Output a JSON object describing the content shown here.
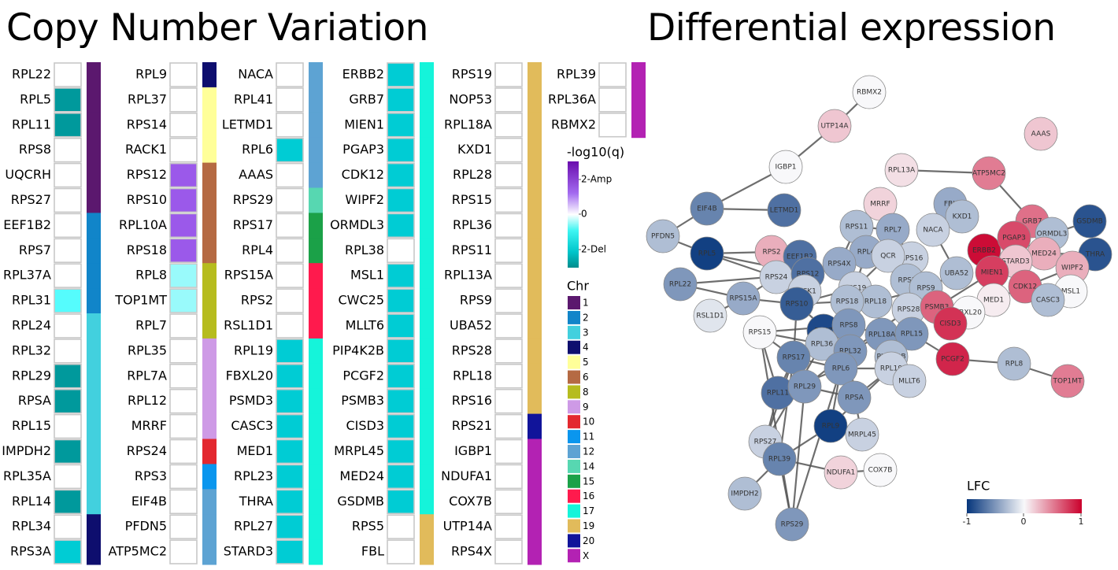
{
  "titles": {
    "cnv": "Copy Number Variation",
    "de": "Differential expression"
  },
  "cnv_colors": {
    "none": "#ffffff",
    "del1": "#00CCD4",
    "del2": "#00999C",
    "del_light": "#99FAFB",
    "del_mid": "#55FCFD",
    "amp1": "#9B59EA"
  },
  "chr_colors": {
    "1": "#5B186E",
    "2": "#1185C9",
    "3": "#42D0DE",
    "4": "#0E0E6E",
    "5": "#FFFF99",
    "6": "#B56A43",
    "8": "#B6BC1E",
    "9": "#CE9AE6",
    "10": "#E3282F",
    "11": "#0A96EE",
    "12": "#5DA3D3",
    "14": "#57D7B1",
    "15": "#1BA148",
    "16": "#FF1A4D",
    "17": "#15F4DA",
    "19": "#E1BB5B",
    "20": "#11149A",
    "X": "#B322B3"
  },
  "cnv_columns": [
    {
      "genes": [
        "RPL22",
        "RPL5",
        "RPL11",
        "RPS8",
        "UQCRH",
        "RPS27",
        "EEF1B2",
        "RPS7",
        "RPL37A",
        "RPL31",
        "RPL24",
        "RPL32",
        "RPL29",
        "RPSA",
        "RPL15",
        "IMPDH2",
        "RPL35A",
        "RPL14",
        "RPL34",
        "RPS3A"
      ],
      "values": [
        "none",
        "del2",
        "del2",
        "none",
        "none",
        "none",
        "none",
        "none",
        "none",
        "del_mid",
        "none",
        "none",
        "del2",
        "del2",
        "none",
        "del2",
        "none",
        "del2",
        "none",
        "del1"
      ],
      "chr": [
        "1",
        "1",
        "1",
        "1",
        "1",
        "1",
        "2",
        "2",
        "2",
        "2",
        "3",
        "3",
        "3",
        "3",
        "3",
        "3",
        "3",
        "3",
        "4",
        "4"
      ]
    },
    {
      "genes": [
        "RPL9",
        "RPL37",
        "RPS14",
        "RACK1",
        "RPS12",
        "RPS10",
        "RPL10A",
        "RPS18",
        "RPL8",
        "TOP1MT",
        "RPL7",
        "RPL35",
        "RPL7A",
        "RPL12",
        "MRRF",
        "RPS24",
        "RPS3",
        "EIF4B",
        "PFDN5",
        "ATP5MC2"
      ],
      "values": [
        "none",
        "none",
        "none",
        "none",
        "amp1",
        "amp1",
        "amp1",
        "amp1",
        "del_light",
        "del_light",
        "none",
        "none",
        "none",
        "none",
        "none",
        "none",
        "none",
        "none",
        "none",
        "none"
      ],
      "chr": [
        "4",
        "5",
        "5",
        "5",
        "6",
        "6",
        "6",
        "6",
        "8",
        "8",
        "8",
        "9",
        "9",
        "9",
        "9",
        "10",
        "11",
        "12",
        "12",
        "12"
      ]
    },
    {
      "genes": [
        "NACA",
        "RPL41",
        "LETMD1",
        "RPL6",
        "AAAS",
        "RPS29",
        "RPS17",
        "RPL4",
        "RPS15A",
        "RPS2",
        "RSL1D1",
        "RPL19",
        "FBXL20",
        "PSMD3",
        "CASC3",
        "MED1",
        "RPL23",
        "THRA",
        "RPL27",
        "STARD3"
      ],
      "values": [
        "none",
        "none",
        "none",
        "del1",
        "none",
        "none",
        "none",
        "none",
        "none",
        "none",
        "none",
        "del1",
        "del1",
        "del1",
        "del1",
        "del1",
        "del1",
        "del1",
        "del1",
        "del1"
      ],
      "chr": [
        "12",
        "12",
        "12",
        "12",
        "12",
        "14",
        "15",
        "15",
        "16",
        "16",
        "16",
        "17",
        "17",
        "17",
        "17",
        "17",
        "17",
        "17",
        "17",
        "17"
      ]
    },
    {
      "genes": [
        "ERBB2",
        "GRB7",
        "MIEN1",
        "PGAP3",
        "CDK12",
        "WIPF2",
        "ORMDL3",
        "RPL38",
        "MSL1",
        "CWC25",
        "MLLT6",
        "PIP4K2B",
        "PCGF2",
        "PSMB3",
        "CISD3",
        "MRPL45",
        "MED24",
        "GSDMB",
        "RPS5",
        "FBL"
      ],
      "values": [
        "del1",
        "del1",
        "del1",
        "del1",
        "del1",
        "del1",
        "del1",
        "none",
        "del1",
        "del1",
        "del1",
        "del1",
        "del1",
        "del1",
        "del1",
        "del1",
        "del1",
        "del1",
        "none",
        "none"
      ],
      "chr": [
        "17",
        "17",
        "17",
        "17",
        "17",
        "17",
        "17",
        "17",
        "17",
        "17",
        "17",
        "17",
        "17",
        "17",
        "17",
        "17",
        "17",
        "17",
        "19",
        "19"
      ]
    },
    {
      "genes": [
        "RPS19",
        "NOP53",
        "RPL18A",
        "KXD1",
        "RPL28",
        "RPS15",
        "RPL36",
        "RPS11",
        "RPL13A",
        "RPS9",
        "UBA52",
        "RPS28",
        "RPL18",
        "RPS16",
        "RPS21",
        "IGBP1",
        "NDUFA1",
        "COX7B",
        "UTP14A",
        "RPS4X"
      ],
      "values": [
        "none",
        "none",
        "none",
        "none",
        "none",
        "none",
        "none",
        "none",
        "none",
        "none",
        "none",
        "none",
        "none",
        "none",
        "none",
        "none",
        "none",
        "none",
        "none",
        "none"
      ],
      "chr": [
        "19",
        "19",
        "19",
        "19",
        "19",
        "19",
        "19",
        "19",
        "19",
        "19",
        "19",
        "19",
        "19",
        "19",
        "20",
        "X",
        "X",
        "X",
        "X",
        "X"
      ]
    },
    {
      "genes": [
        "RPL39",
        "RPL36A",
        "RBMX2"
      ],
      "values": [
        "none",
        "none",
        "none"
      ],
      "chr": [
        "X",
        "X",
        "X"
      ]
    }
  ],
  "q_legend": {
    "title": "-log10(q)",
    "ticks": [
      "2-Amp",
      "0",
      "2-Del"
    ]
  },
  "chr_legend": {
    "title": "Chr",
    "items": [
      "1",
      "2",
      "3",
      "4",
      "5",
      "6",
      "8",
      "9",
      "10",
      "11",
      "12",
      "14",
      "15",
      "16",
      "17",
      "19",
      "20",
      "X"
    ]
  },
  "lfc_legend": {
    "title": "LFC",
    "ticks": [
      "-1",
      "0",
      "1"
    ]
  },
  "network": {
    "nodes": [
      {
        "id": "RBMX2",
        "lfc": 0.0
      },
      {
        "id": "UTP14A",
        "lfc": 0.2
      },
      {
        "id": "AAAS",
        "lfc": 0.2
      },
      {
        "id": "IGBP1",
        "lfc": 0.0
      },
      {
        "id": "RPL13A",
        "lfc": 0.1
      },
      {
        "id": "ATP5MC2",
        "lfc": 0.5
      },
      {
        "id": "EIF4B",
        "lfc": -0.6
      },
      {
        "id": "LETMD1",
        "lfc": -0.7
      },
      {
        "id": "MRRF",
        "lfc": 0.15
      },
      {
        "id": "FBL",
        "lfc": -0.4
      },
      {
        "id": "KXD1",
        "lfc": -0.3
      },
      {
        "id": "GRB7",
        "lfc": 0.55
      },
      {
        "id": "GSDMB",
        "lfc": -0.85
      },
      {
        "id": "PFDN5",
        "lfc": -0.3
      },
      {
        "id": "RPL5",
        "lfc": -0.95
      },
      {
        "id": "RPS2",
        "lfc": 0.3
      },
      {
        "id": "EEF1B2",
        "lfc": -0.7
      },
      {
        "id": "RPS11",
        "lfc": -0.3
      },
      {
        "id": "RPL7",
        "lfc": -0.4
      },
      {
        "id": "NACA",
        "lfc": -0.2
      },
      {
        "id": "ERBB2",
        "lfc": 0.95
      },
      {
        "id": "PGAP3",
        "lfc": 0.7
      },
      {
        "id": "ORMDL3",
        "lfc": -0.3
      },
      {
        "id": "MED24",
        "lfc": 0.3
      },
      {
        "id": "THRA",
        "lfc": -0.85
      },
      {
        "id": "RPL4",
        "lfc": -0.4
      },
      {
        "id": "RPS4X",
        "lfc": -0.4
      },
      {
        "id": "RPS16",
        "lfc": -0.2
      },
      {
        "id": "STARD3",
        "lfc": 0.2
      },
      {
        "id": "MIEN1",
        "lfc": 0.75
      },
      {
        "id": "WIPF2",
        "lfc": 0.3
      },
      {
        "id": "RPL22",
        "lfc": -0.5
      },
      {
        "id": "RPS24",
        "lfc": -0.2
      },
      {
        "id": "RPS12",
        "lfc": -0.7
      },
      {
        "id": "QCR",
        "lfc": -0.2
      },
      {
        "id": "UBA52",
        "lfc": -0.3
      },
      {
        "id": "CDK12",
        "lfc": 0.6
      },
      {
        "id": "MSL1",
        "lfc": 0.0
      },
      {
        "id": "RPS15A",
        "lfc": -0.4
      },
      {
        "id": "RACK1",
        "lfc": -0.2
      },
      {
        "id": "RPS19",
        "lfc": -0.2
      },
      {
        "id": "RPS3",
        "lfc": -0.3
      },
      {
        "id": "RPS9",
        "lfc": -0.3
      },
      {
        "id": "RPL18",
        "lfc": -0.3
      },
      {
        "id": "MED1",
        "lfc": 0.05
      },
      {
        "id": "CASC3",
        "lfc": -0.3
      },
      {
        "id": "RSL1D1",
        "lfc": -0.1
      },
      {
        "id": "RPS10",
        "lfc": -0.8
      },
      {
        "id": "RPS18",
        "lfc": -0.3
      },
      {
        "id": "RPS28",
        "lfc": -0.2
      },
      {
        "id": "PSMB3",
        "lfc": 0.6
      },
      {
        "id": "FBXL20",
        "lfc": 0.0
      },
      {
        "id": "RPS15",
        "lfc": 0.0
      },
      {
        "id": "RPS7",
        "lfc": -0.9
      },
      {
        "id": "RPS8",
        "lfc": -0.5
      },
      {
        "id": "RPL18A",
        "lfc": -0.5
      },
      {
        "id": "RPL15",
        "lfc": -0.5
      },
      {
        "id": "CISD3",
        "lfc": 0.8
      },
      {
        "id": "RPL36",
        "lfc": -0.3
      },
      {
        "id": "RPL32",
        "lfc": -0.5
      },
      {
        "id": "PIP4K2B",
        "lfc": -0.3
      },
      {
        "id": "PCGF2",
        "lfc": 0.85
      },
      {
        "id": "RPL8",
        "lfc": -0.3
      },
      {
        "id": "TOP1MT",
        "lfc": 0.5
      },
      {
        "id": "RPS17",
        "lfc": -0.6
      },
      {
        "id": "RPL6",
        "lfc": -0.5
      },
      {
        "id": "RPL19",
        "lfc": -0.2
      },
      {
        "id": "MLLT6",
        "lfc": -0.2
      },
      {
        "id": "RPL11",
        "lfc": -0.7
      },
      {
        "id": "RPL29",
        "lfc": -0.5
      },
      {
        "id": "RPSA",
        "lfc": -0.5
      },
      {
        "id": "RPL9",
        "lfc": -0.95
      },
      {
        "id": "MRPL45",
        "lfc": -0.2
      },
      {
        "id": "RPS27",
        "lfc": -0.2
      },
      {
        "id": "RPL39",
        "lfc": -0.6
      },
      {
        "id": "NDUFA1",
        "lfc": 0.15
      },
      {
        "id": "COX7B",
        "lfc": 0.0
      },
      {
        "id": "IMPDH2",
        "lfc": -0.3
      },
      {
        "id": "RPS29",
        "lfc": -0.5
      }
    ],
    "node_labels": {
      "RBMX2": "RBMX2",
      "UTP14A": "UTP14A",
      "AAAS": "AAAS",
      "IGBP1": "IGBP1",
      "RPL13A": "RPL13A",
      "ATP5MC2": "ATP5MC2",
      "EIF4B": "EIF4B",
      "LETMD1": "LETMD1",
      "MRRF": "MRRF",
      "FBL": "FBL",
      "KXD1": "KXD1",
      "GRB7": "GRB7",
      "GSDMB": "GSDMB",
      "PFDN5": "PFDN5",
      "RPL5": "RPL5",
      "RPS2": "RPS2",
      "EEF1B2": "EEF1B2",
      "RPS11": "RPS11",
      "RPL7": "RPL7",
      "NACA": "NACA",
      "ERBB2": "ERBB2",
      "PGAP3": "PGAP3",
      "ORMDL3": "ORMDL3",
      "MED24": "MED24",
      "THRA": "THRA",
      "RPL4": "RPL4",
      "RPS4X": "RPS4X",
      "RPS16": "RPS16",
      "STARD3": "STARD3",
      "MIEN1": "MIEN1",
      "WIPF2": "WIPF2",
      "RPL22": "RPL22",
      "RPS24": "RPS24",
      "RPS12": "RPS12",
      "QCR": "QCR",
      "UBA52": "UBA52",
      "CDK12": "CDK12",
      "MSL1": "MSL1",
      "RPS15A": "RPS15A",
      "RACK1": "RACK1",
      "RPS19": "RPS19",
      "RPS3": "RPS3",
      "RPS9": "RPS9",
      "RPL18": "RPL18",
      "MED1": "MED1",
      "CASC3": "CASC3",
      "RSL1D1": "RSL1D1",
      "RPS10": "RPS10",
      "RPS18": "RPS18",
      "RPS28": "RPS28",
      "PSMB3": "PSMB3",
      "FBXL20": "FBXL20",
      "RPS15": "RPS15",
      "RPS7": "RPS7",
      "RPS8": "RPS8",
      "RPL18A": "RPL18A",
      "RPL15": "RPL15",
      "CISD3": "CISD3",
      "RPL36": "RPL36",
      "RPL32": "RPL32",
      "PIP4K2B": "PIP4K2B",
      "PCGF2": "PCGF2",
      "RPL8": "RPL8",
      "TOP1MT": "TOP1MT",
      "RPS17": "RPS17",
      "RPL6": "RPL6",
      "RPL19": "RPL19",
      "MLLT6": "MLLT6",
      "RPL11": "RPL11",
      "RPL29": "RPL29",
      "RPSA": "RPSA",
      "RPL9": "RPL9",
      "MRPL45": "MRPL45",
      "RPS27": "RPS27",
      "RPL39": "RPL39",
      "NDUFA1": "NDUFA1",
      "COX7B": "COX7B",
      "IMPDH2": "IMPDH2",
      "RPS29": "RPS29"
    },
    "edges": [
      [
        "RBMX2",
        "UTP14A"
      ],
      [
        "UTP14A",
        "IGBP1"
      ],
      [
        "IGBP1",
        "EIF4B"
      ],
      [
        "EIF4B",
        "LETMD1"
      ],
      [
        "EIF4B",
        "PFDN5"
      ],
      [
        "RPL13A",
        "ATP5MC2"
      ],
      [
        "ATP5MC2",
        "GRB7"
      ],
      [
        "FBL",
        "KXD1"
      ],
      [
        "PFDN5",
        "RPL5"
      ],
      [
        "RPL5",
        "RPS2"
      ],
      [
        "RPL5",
        "RPS12"
      ],
      [
        "RPL5",
        "RPS24"
      ],
      [
        "RPL22",
        "RPS12"
      ],
      [
        "RPL22",
        "RPS15A"
      ],
      [
        "RSL1D1",
        "RPS15A"
      ],
      [
        "RPS15",
        "RPS17"
      ],
      [
        "RPS17",
        "RPS10"
      ],
      [
        "RPS10",
        "RPS19"
      ],
      [
        "RPS19",
        "RPL4"
      ],
      [
        "RPL4",
        "RPS4X"
      ],
      [
        "RPS4X",
        "RPS16"
      ],
      [
        "RPS16",
        "RPS3"
      ],
      [
        "RPS3",
        "RPS28"
      ],
      [
        "RPS28",
        "PSMB3"
      ],
      [
        "PSMB3",
        "MIEN1"
      ],
      [
        "MIEN1",
        "ERBB2"
      ],
      [
        "ERBB2",
        "GRB7"
      ],
      [
        "GRB7",
        "PGAP3"
      ],
      [
        "PGAP3",
        "MED24"
      ],
      [
        "MED24",
        "STARD3"
      ],
      [
        "STARD3",
        "CDK12"
      ],
      [
        "CDK12",
        "MED1"
      ],
      [
        "CDK12",
        "CASC3"
      ],
      [
        "MSL1",
        "CDK12"
      ],
      [
        "MIEN1",
        "STARD3"
      ],
      [
        "ERBB2",
        "PGAP3"
      ],
      [
        "GSDMB",
        "ORMDL3"
      ],
      [
        "ORMDL3",
        "MED24"
      ],
      [
        "THRA",
        "MED24"
      ],
      [
        "WIPF2",
        "CDK12"
      ],
      [
        "PCGF2",
        "RPL8"
      ],
      [
        "RPL8",
        "TOP1MT"
      ],
      [
        "PCGF2",
        "RPL15"
      ],
      [
        "RPL15",
        "RPL18A"
      ],
      [
        "RPL18A",
        "RPL32"
      ],
      [
        "RPL32",
        "RPS7"
      ],
      [
        "RPS7",
        "RPL36"
      ],
      [
        "RPL36",
        "RPS17"
      ],
      [
        "RPS17",
        "RPL11"
      ],
      [
        "RPL11",
        "RPS27"
      ],
      [
        "RPS27",
        "RPL39"
      ],
      [
        "RPL39",
        "RPS29"
      ],
      [
        "RPL39",
        "IMPDH2"
      ],
      [
        "RPL39",
        "RPL9"
      ],
      [
        "RPL9",
        "MRPL45"
      ],
      [
        "MRPL45",
        "RPSA"
      ],
      [
        "RPSA",
        "RPL29"
      ],
      [
        "RPL29",
        "RPL11"
      ],
      [
        "RPL9",
        "RPL6"
      ],
      [
        "RPL6",
        "RPL19"
      ],
      [
        "RPL19",
        "MLLT6"
      ],
      [
        "MLLT6",
        "PIP4K2B"
      ],
      [
        "PIP4K2B",
        "RPL15"
      ],
      [
        "RPS29",
        "RPL29"
      ],
      [
        "RPS29",
        "RPL6"
      ],
      [
        "RPS27",
        "RPS17"
      ],
      [
        "NDUFA1",
        "COX7B"
      ],
      [
        "RPL39",
        "NDUFA1"
      ],
      [
        "RPS8",
        "RPS15"
      ],
      [
        "RPS2",
        "RPS12"
      ],
      [
        "RACK1",
        "RPS10"
      ],
      [
        "RPS24",
        "RPS15A"
      ],
      [
        "RPL7",
        "RPS11"
      ],
      [
        "RPL7",
        "RPS16"
      ],
      [
        "NACA",
        "UBA52"
      ],
      [
        "UBA52",
        "RPS9"
      ],
      [
        "RPS9",
        "RPL18"
      ],
      [
        "RPL18",
        "RPS18"
      ],
      [
        "RPS18",
        "RPS10"
      ],
      [
        "RPS18",
        "RPS8"
      ],
      [
        "QCR",
        "RPS19"
      ],
      [
        "EEF1B2",
        "RPS12"
      ],
      [
        "EEF1B2",
        "RACK1"
      ],
      [
        "RPS11",
        "RPS4X"
      ],
      [
        "FBXL20",
        "PSMB3"
      ],
      [
        "CISD3",
        "PSMB3"
      ],
      [
        "RPS28",
        "RPL15"
      ],
      [
        "RPL18",
        "RPL18A"
      ],
      [
        "RPS3",
        "RPL19"
      ],
      [
        "RPL36",
        "RPS15"
      ],
      [
        "RPS10",
        "RPL32"
      ],
      [
        "RPS12",
        "RPS10"
      ],
      [
        "RPL4",
        "RPS12"
      ],
      [
        "MRRF",
        "RPL7"
      ],
      [
        "RPS15A",
        "RPS10"
      ],
      [
        "RPL29",
        "RPL32"
      ],
      [
        "RPSA",
        "RPL19"
      ],
      [
        "RPL11",
        "RPL6"
      ],
      [
        "RPS8",
        "RPL18A"
      ],
      [
        "RPL6",
        "RPS17"
      ],
      [
        "RPL9",
        "RPL19"
      ],
      [
        "RPL39",
        "RPS17"
      ],
      [
        "RPS29",
        "RPS15"
      ],
      [
        "RPS27",
        "RPL36"
      ],
      [
        "RPL11",
        "RPS15"
      ],
      [
        "RPL32",
        "RPS28"
      ],
      [
        "RPSA",
        "RPL32"
      ],
      [
        "RPL29",
        "RPS17"
      ]
    ]
  }
}
